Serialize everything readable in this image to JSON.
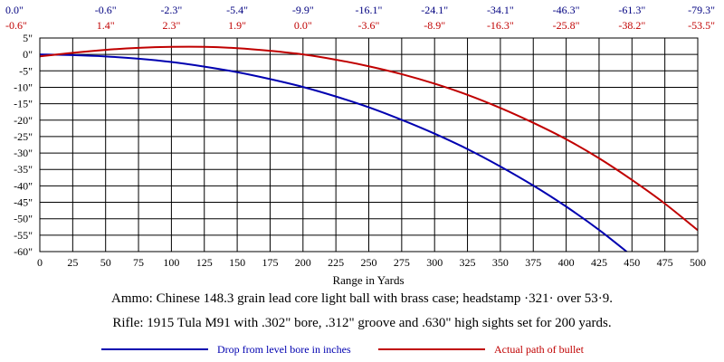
{
  "chart_data": {
    "type": "line",
    "xlabel": "Range in Yards",
    "xlim": [
      0,
      500
    ],
    "ylim": [
      -60,
      5
    ],
    "grid": true,
    "x_ticks": [
      0,
      25,
      50,
      75,
      100,
      125,
      150,
      175,
      200,
      225,
      250,
      275,
      300,
      325,
      350,
      375,
      400,
      425,
      450,
      475,
      500
    ],
    "x_tick_labels": [
      "0",
      "25",
      "50",
      "75",
      "100",
      "125",
      "150",
      "175",
      "200",
      "225",
      "250",
      "275",
      "300",
      "325",
      "350",
      "375",
      "400",
      "425",
      "450",
      "475",
      "500"
    ],
    "y_ticks": [
      5,
      0,
      -5,
      -10,
      -15,
      -20,
      -25,
      -30,
      -35,
      -40,
      -45,
      -50,
      -55,
      -60
    ],
    "y_tick_labels": [
      "5\"",
      "0\"",
      "-5\"",
      "-10\"",
      "-15\"",
      "-20\"",
      "-25\"",
      "-30\"",
      "-35\"",
      "-40\"",
      "-45\"",
      "-50\"",
      "-55\"",
      "-60\""
    ],
    "top_rows": [
      {
        "color": "#000080",
        "x": [
          0,
          50,
          100,
          150,
          200,
          250,
          300,
          350,
          400,
          450,
          500
        ],
        "labels": [
          "0.0\"",
          "-0.6\"",
          "-2.3\"",
          "-5.4\"",
          "-9.9\"",
          "-16.1\"",
          "-24.1\"",
          "-34.1\"",
          "-46.3\"",
          "-61.3\"",
          "-79.3\""
        ]
      },
      {
        "color": "#c00000",
        "x": [
          0,
          50,
          100,
          150,
          200,
          250,
          300,
          350,
          400,
          450,
          500
        ],
        "labels": [
          "-0.6\"",
          "1.4\"",
          "2.3\"",
          "1.9\"",
          "0.0\"",
          "-3.6\"",
          "-8.9\"",
          "-16.3\"",
          "-25.8\"",
          "-38.2\"",
          "-53.5\""
        ]
      }
    ],
    "series": [
      {
        "name": "Drop from level bore in inches",
        "color": "#0000b0",
        "x": [
          0,
          25,
          50,
          75,
          100,
          125,
          150,
          175,
          200,
          225,
          250,
          275,
          300,
          325,
          350,
          375,
          400,
          425,
          450
        ],
        "y": [
          0,
          -0.2,
          -0.6,
          -1.3,
          -2.3,
          -3.7,
          -5.4,
          -7.5,
          -9.9,
          -12.8,
          -16.1,
          -19.9,
          -24.1,
          -28.8,
          -34.1,
          -39.9,
          -46.3,
          -53.4,
          -61.3
        ]
      },
      {
        "name": "Actual path of bullet",
        "color": "#c00000",
        "x": [
          0,
          25,
          50,
          75,
          100,
          125,
          150,
          175,
          200,
          225,
          250,
          275,
          300,
          325,
          350,
          375,
          400,
          425,
          450,
          475,
          500
        ],
        "y": [
          -0.6,
          0.5,
          1.4,
          2.0,
          2.3,
          2.3,
          1.9,
          1.1,
          0.0,
          -1.6,
          -3.6,
          -6.0,
          -8.9,
          -12.3,
          -16.3,
          -20.8,
          -25.8,
          -31.6,
          -38.2,
          -45.4,
          -53.5
        ]
      }
    ]
  },
  "notes": {
    "ammo": "Ammo:  Chinese 148.3 grain lead core light ball with brass case; headstamp ·321· over 53·9.",
    "rifle": "Rifle:  1915 Tula M91 with .302\" bore, .312\" groove and .630\" high sights set for 200 yards."
  }
}
